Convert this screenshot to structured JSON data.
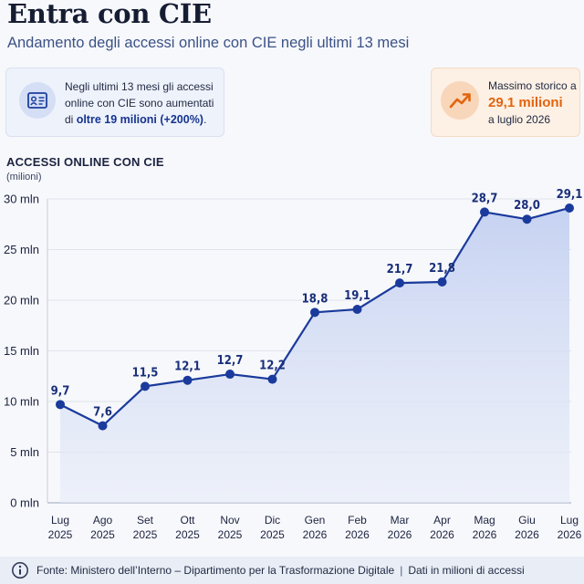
{
  "header": {
    "title": "Entra con CIE",
    "subtitle": "Andamento degli accessi online con CIE negli ultimi 13 mesi"
  },
  "cards": {
    "left": {
      "icon": "id-card-icon",
      "text": "Negli ultimi 13 mesi gli accessi online con CIE sono aumentati di",
      "highlight": "oltre 19 milioni (+200%)",
      "suffix": "."
    },
    "right": {
      "icon": "trending-up-icon",
      "line1": "Massimo storico a",
      "value": "29,1 milioni",
      "line3": "a luglio 2026"
    }
  },
  "chart_data": {
    "type": "area",
    "title": "ACCESSI ONLINE CON CIE",
    "ylabel": "(milioni)",
    "ylim": [
      0,
      30
    ],
    "yticks": [
      0,
      5,
      10,
      15,
      20,
      25,
      30
    ],
    "ytick_labels": [
      "0 mln",
      "5 mln",
      "10 mln",
      "15 mln",
      "20 mln",
      "25 mln",
      "30 mln"
    ],
    "categories": [
      [
        "Lug",
        "2025"
      ],
      [
        "Ago",
        "2025"
      ],
      [
        "Set",
        "2025"
      ],
      [
        "Ott",
        "2025"
      ],
      [
        "Nov",
        "2025"
      ],
      [
        "Dic",
        "2025"
      ],
      [
        "Gen",
        "2026"
      ],
      [
        "Feb",
        "2026"
      ],
      [
        "Mar",
        "2026"
      ],
      [
        "Apr",
        "2026"
      ],
      [
        "Mag",
        "2026"
      ],
      [
        "Giu",
        "2026"
      ],
      [
        "Lug",
        "2026"
      ]
    ],
    "values": [
      9.7,
      7.6,
      11.5,
      12.1,
      12.7,
      12.2,
      18.8,
      19.1,
      21.7,
      21.8,
      28.7,
      28.0,
      29.1
    ],
    "data_labels": [
      "9,7",
      "7,6",
      "11,5",
      "12,1",
      "12,7",
      "12,2",
      "18,8",
      "19,1",
      "21,7",
      "21,8",
      "28,7",
      "28,0",
      "29,1"
    ],
    "colors": {
      "line": "#1a3a9c",
      "fill": "#c9d5f3",
      "grid": "#dfe3ec",
      "label": "#1a2f7a"
    },
    "grid": true,
    "legend": "none"
  },
  "footer": {
    "icon": "info-icon",
    "source": "Fonte: Ministero dell’Interno – Dipartimento per la Trasformazione Digitale",
    "separator": "|",
    "note": "Dati in milioni di accessi"
  }
}
